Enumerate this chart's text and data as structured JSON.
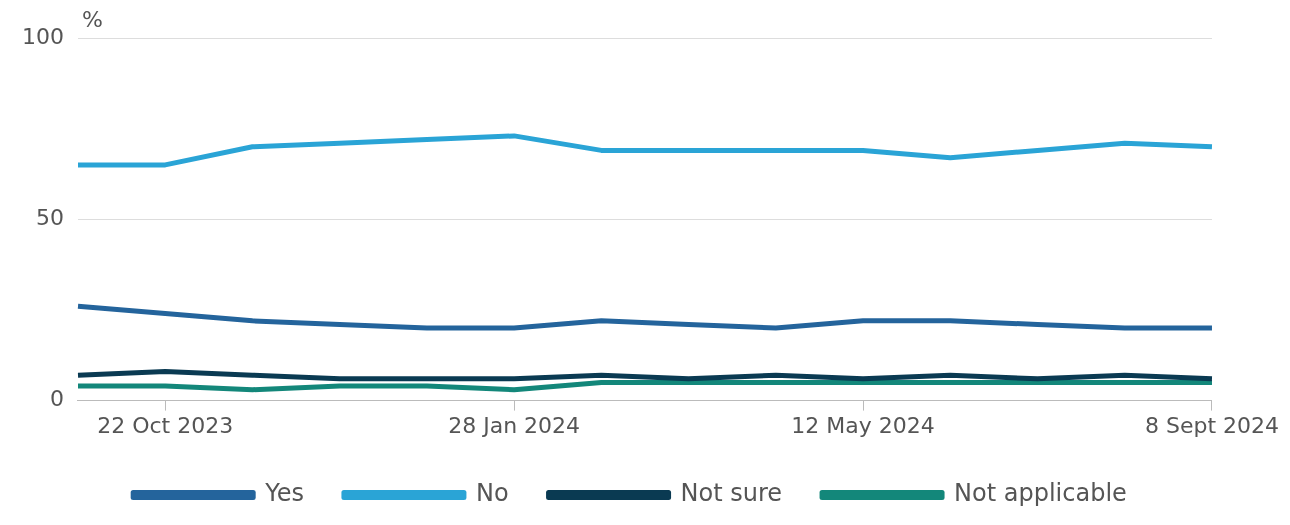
{
  "chart_data": {
    "type": "line",
    "ylabel": "%",
    "categories": [
      null,
      "22 Oct 2023",
      null,
      null,
      null,
      "28 Jan 2024",
      null,
      null,
      null,
      "12 May 2024",
      null,
      null,
      null,
      "8 Sept 2024"
    ],
    "series": [
      {
        "name": "Yes",
        "color": "#24649c",
        "values": [
          26,
          24,
          22,
          21,
          20,
          20,
          22,
          21,
          20,
          22,
          22,
          21,
          20,
          20
        ]
      },
      {
        "name": "No",
        "color": "#2aa4d6",
        "values": [
          65,
          65,
          70,
          71,
          72,
          73,
          69,
          69,
          69,
          69,
          67,
          69,
          71,
          70
        ]
      },
      {
        "name": "Not sure",
        "color": "#0a3a52",
        "values": [
          7,
          8,
          7,
          6,
          6,
          6,
          7,
          6,
          7,
          6,
          7,
          6,
          7,
          6
        ]
      },
      {
        "name": "Not applicable",
        "color": "#13877a",
        "values": [
          4,
          4,
          3,
          4,
          4,
          3,
          5,
          5,
          5,
          5,
          5,
          5,
          5,
          5
        ]
      }
    ],
    "ylim": [
      0,
      100
    ],
    "yticks": [
      0,
      50,
      100
    ],
    "grid": "y",
    "legend": "bottom",
    "marker": "none",
    "line_style": "solid"
  }
}
